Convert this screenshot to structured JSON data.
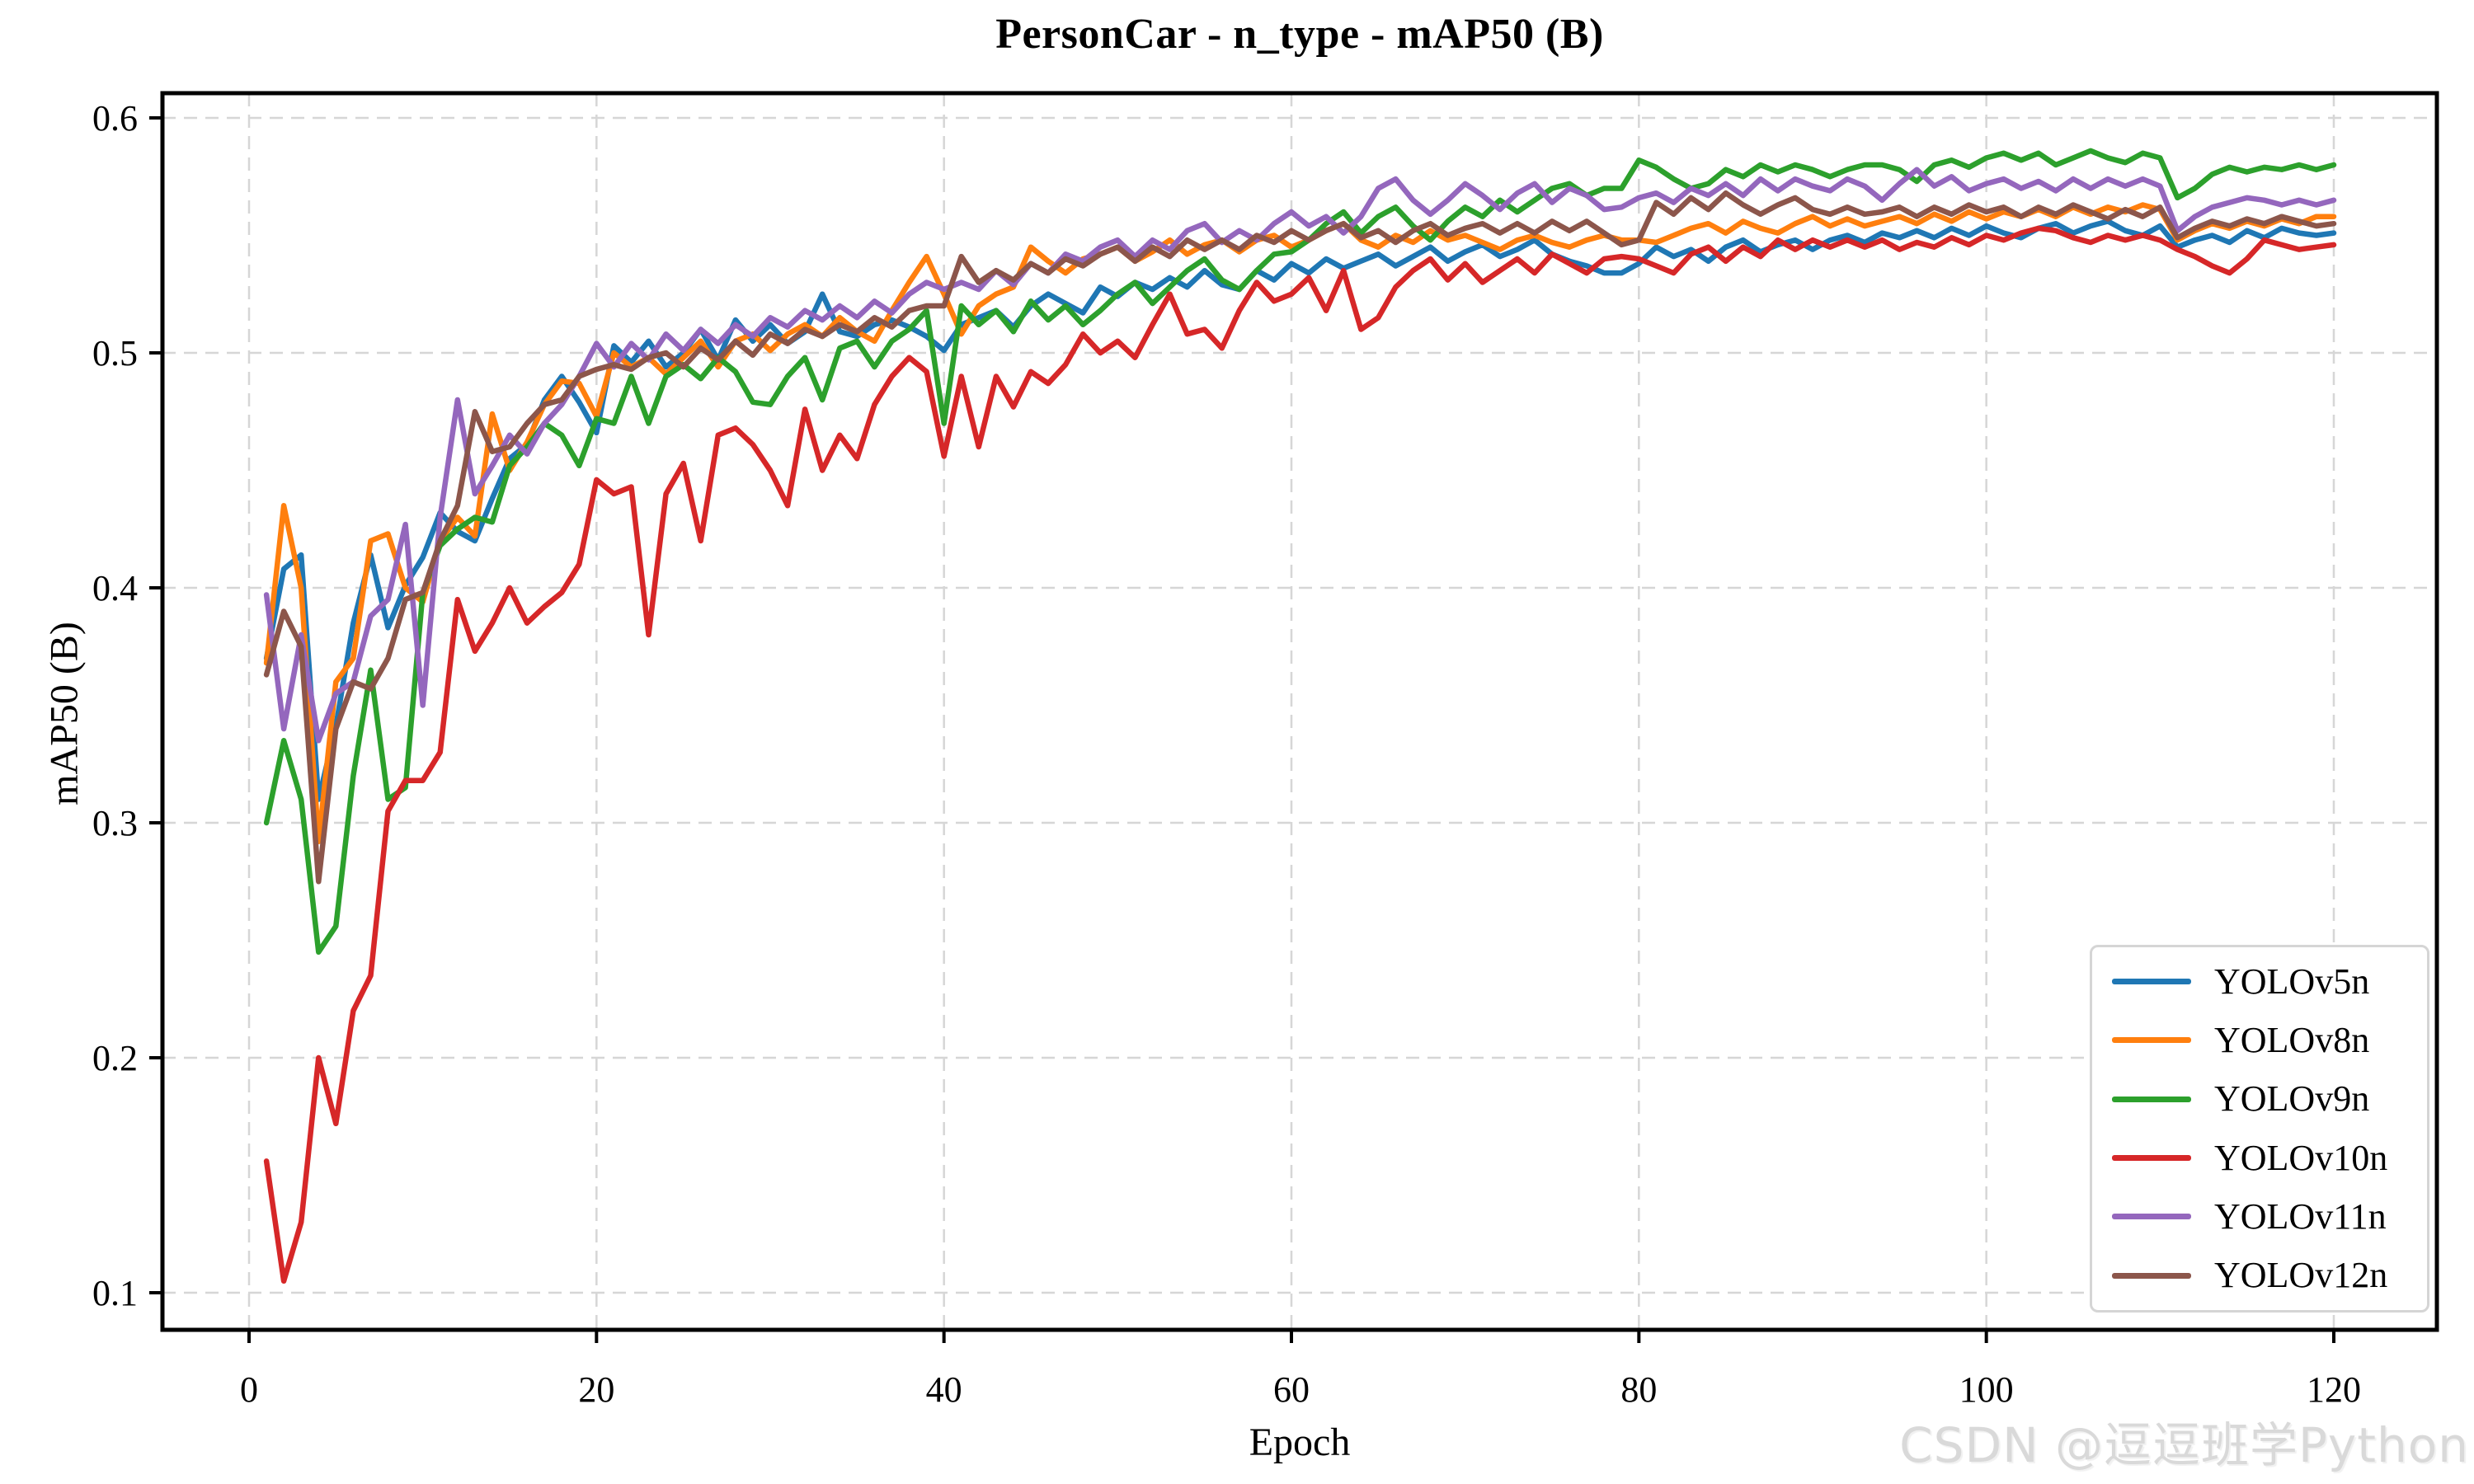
{
  "watermark": {
    "text": "CSDN @逗逗班学Python"
  },
  "chart_data": {
    "type": "line",
    "title": "PersonCar - n_type - mAP50 (B)",
    "xlabel": "Epoch",
    "ylabel": "mAP50 (B)",
    "xlim": [
      -5,
      126
    ],
    "ylim": [
      0.0875,
      0.6105
    ],
    "xticks": [
      0,
      20,
      40,
      60,
      80,
      100,
      120
    ],
    "yticks": [
      0.1,
      0.2,
      0.3,
      0.4,
      0.5,
      0.6
    ],
    "grid": true,
    "grid_style": "dashed",
    "legend_position": "lower right",
    "x_start": 1,
    "x_step": 1,
    "series": [
      {
        "name": "YOLOv5n",
        "color": "#1f77b4",
        "values": [
          0.37,
          0.408,
          0.414,
          0.31,
          0.341,
          0.385,
          0.414,
          0.383,
          0.401,
          0.413,
          0.432,
          0.424,
          0.42,
          0.438,
          0.455,
          0.461,
          0.48,
          0.49,
          0.479,
          0.466,
          0.503,
          0.496,
          0.505,
          0.494,
          0.5,
          0.51,
          0.497,
          0.514,
          0.505,
          0.512,
          0.504,
          0.509,
          0.525,
          0.509,
          0.507,
          0.512,
          0.514,
          0.511,
          0.507,
          0.501,
          0.512,
          0.515,
          0.518,
          0.511,
          0.52,
          0.525,
          0.521,
          0.517,
          0.528,
          0.524,
          0.53,
          0.527,
          0.532,
          0.528,
          0.535,
          0.529,
          0.527,
          0.535,
          0.531,
          0.538,
          0.534,
          0.54,
          0.536,
          0.539,
          0.542,
          0.537,
          0.541,
          0.545,
          0.539,
          0.543,
          0.546,
          0.541,
          0.544,
          0.548,
          0.542,
          0.539,
          0.537,
          0.534,
          0.534,
          0.538,
          0.545,
          0.541,
          0.544,
          0.539,
          0.545,
          0.548,
          0.543,
          0.546,
          0.548,
          0.544,
          0.548,
          0.55,
          0.547,
          0.551,
          0.549,
          0.552,
          0.549,
          0.553,
          0.55,
          0.554,
          0.551,
          0.549,
          0.553,
          0.555,
          0.551,
          0.554,
          0.556,
          0.552,
          0.55,
          0.554,
          0.545,
          0.548,
          0.55,
          0.547,
          0.552,
          0.549,
          0.553,
          0.551,
          0.55,
          0.551
        ]
      },
      {
        "name": "YOLOv8n",
        "color": "#ff7f0e",
        "values": [
          0.368,
          0.435,
          0.4,
          0.292,
          0.36,
          0.37,
          0.42,
          0.423,
          0.4,
          0.394,
          0.42,
          0.43,
          0.422,
          0.474,
          0.45,
          0.462,
          0.478,
          0.488,
          0.487,
          0.473,
          0.5,
          0.494,
          0.498,
          0.491,
          0.498,
          0.505,
          0.494,
          0.505,
          0.508,
          0.501,
          0.508,
          0.512,
          0.507,
          0.515,
          0.509,
          0.505,
          0.518,
          0.53,
          0.541,
          0.525,
          0.508,
          0.52,
          0.525,
          0.528,
          0.545,
          0.539,
          0.534,
          0.54,
          0.542,
          0.545,
          0.539,
          0.543,
          0.548,
          0.542,
          0.546,
          0.548,
          0.543,
          0.548,
          0.55,
          0.545,
          0.548,
          0.552,
          0.555,
          0.548,
          0.545,
          0.55,
          0.547,
          0.552,
          0.548,
          0.55,
          0.547,
          0.544,
          0.548,
          0.55,
          0.547,
          0.545,
          0.548,
          0.55,
          0.548,
          0.548,
          0.547,
          0.55,
          0.553,
          0.555,
          0.551,
          0.556,
          0.553,
          0.551,
          0.555,
          0.558,
          0.554,
          0.557,
          0.554,
          0.556,
          0.558,
          0.555,
          0.559,
          0.556,
          0.56,
          0.557,
          0.56,
          0.558,
          0.561,
          0.558,
          0.562,
          0.559,
          0.562,
          0.56,
          0.563,
          0.561,
          0.548,
          0.552,
          0.555,
          0.553,
          0.556,
          0.554,
          0.557,
          0.555,
          0.558,
          0.558
        ]
      },
      {
        "name": "YOLOv9n",
        "color": "#2ca02c",
        "values": [
          0.3,
          0.335,
          0.31,
          0.245,
          0.256,
          0.32,
          0.365,
          0.31,
          0.315,
          0.398,
          0.418,
          0.425,
          0.43,
          0.428,
          0.452,
          0.46,
          0.47,
          0.465,
          0.452,
          0.472,
          0.47,
          0.49,
          0.47,
          0.49,
          0.495,
          0.489,
          0.498,
          0.492,
          0.479,
          0.478,
          0.49,
          0.498,
          0.48,
          0.502,
          0.505,
          0.494,
          0.505,
          0.51,
          0.518,
          0.47,
          0.52,
          0.512,
          0.518,
          0.509,
          0.522,
          0.514,
          0.52,
          0.512,
          0.518,
          0.525,
          0.53,
          0.521,
          0.528,
          0.535,
          0.54,
          0.531,
          0.527,
          0.535,
          0.542,
          0.543,
          0.548,
          0.555,
          0.56,
          0.551,
          0.558,
          0.562,
          0.554,
          0.548,
          0.556,
          0.562,
          0.558,
          0.565,
          0.56,
          0.565,
          0.57,
          0.572,
          0.567,
          0.57,
          0.57,
          0.582,
          0.579,
          0.574,
          0.57,
          0.572,
          0.578,
          0.575,
          0.58,
          0.577,
          0.58,
          0.578,
          0.575,
          0.578,
          0.58,
          0.58,
          0.578,
          0.573,
          0.58,
          0.582,
          0.579,
          0.583,
          0.585,
          0.582,
          0.585,
          0.58,
          0.583,
          0.586,
          0.583,
          0.581,
          0.585,
          0.583,
          0.566,
          0.57,
          0.576,
          0.579,
          0.577,
          0.579,
          0.578,
          0.58,
          0.578,
          0.58
        ]
      },
      {
        "name": "YOLOv10n",
        "color": "#d62728",
        "values": [
          0.156,
          0.105,
          0.13,
          0.2,
          0.172,
          0.22,
          0.235,
          0.305,
          0.318,
          0.318,
          0.33,
          0.395,
          0.373,
          0.385,
          0.4,
          0.385,
          0.392,
          0.398,
          0.41,
          0.446,
          0.44,
          0.443,
          0.38,
          0.44,
          0.453,
          0.42,
          0.465,
          0.468,
          0.461,
          0.45,
          0.435,
          0.476,
          0.45,
          0.465,
          0.455,
          0.478,
          0.49,
          0.498,
          0.492,
          0.456,
          0.49,
          0.46,
          0.49,
          0.477,
          0.492,
          0.487,
          0.495,
          0.508,
          0.5,
          0.505,
          0.498,
          0.512,
          0.525,
          0.508,
          0.51,
          0.502,
          0.518,
          0.53,
          0.522,
          0.525,
          0.532,
          0.518,
          0.535,
          0.51,
          0.515,
          0.528,
          0.535,
          0.54,
          0.531,
          0.538,
          0.53,
          0.535,
          0.54,
          0.534,
          0.542,
          0.538,
          0.534,
          0.54,
          0.541,
          0.54,
          0.537,
          0.534,
          0.542,
          0.545,
          0.539,
          0.545,
          0.541,
          0.548,
          0.544,
          0.548,
          0.545,
          0.548,
          0.545,
          0.548,
          0.544,
          0.547,
          0.545,
          0.549,
          0.546,
          0.55,
          0.548,
          0.551,
          0.553,
          0.552,
          0.549,
          0.547,
          0.55,
          0.548,
          0.55,
          0.548,
          0.544,
          0.541,
          0.537,
          0.534,
          0.54,
          0.548,
          0.546,
          0.544,
          0.545,
          0.546
        ]
      },
      {
        "name": "YOLOv11n",
        "color": "#9467bd",
        "values": [
          0.397,
          0.34,
          0.38,
          0.335,
          0.355,
          0.36,
          0.388,
          0.395,
          0.427,
          0.35,
          0.43,
          0.48,
          0.44,
          0.452,
          0.465,
          0.457,
          0.47,
          0.478,
          0.49,
          0.504,
          0.494,
          0.504,
          0.497,
          0.508,
          0.501,
          0.51,
          0.504,
          0.512,
          0.507,
          0.515,
          0.511,
          0.518,
          0.514,
          0.52,
          0.515,
          0.522,
          0.517,
          0.525,
          0.53,
          0.527,
          0.53,
          0.527,
          0.535,
          0.529,
          0.538,
          0.534,
          0.542,
          0.539,
          0.545,
          0.548,
          0.541,
          0.548,
          0.544,
          0.552,
          0.555,
          0.547,
          0.552,
          0.548,
          0.555,
          0.56,
          0.554,
          0.558,
          0.551,
          0.558,
          0.57,
          0.574,
          0.565,
          0.559,
          0.565,
          0.572,
          0.567,
          0.561,
          0.568,
          0.572,
          0.564,
          0.57,
          0.567,
          0.561,
          0.562,
          0.566,
          0.568,
          0.564,
          0.57,
          0.567,
          0.572,
          0.567,
          0.574,
          0.569,
          0.574,
          0.571,
          0.569,
          0.574,
          0.571,
          0.565,
          0.572,
          0.578,
          0.571,
          0.575,
          0.569,
          0.572,
          0.574,
          0.57,
          0.573,
          0.569,
          0.574,
          0.57,
          0.574,
          0.571,
          0.574,
          0.571,
          0.552,
          0.558,
          0.562,
          0.564,
          0.566,
          0.565,
          0.563,
          0.565,
          0.563,
          0.565
        ]
      },
      {
        "name": "YOLOv12n",
        "color": "#8c564b",
        "values": [
          0.363,
          0.39,
          0.375,
          0.275,
          0.34,
          0.36,
          0.357,
          0.37,
          0.395,
          0.398,
          0.42,
          0.435,
          0.475,
          0.458,
          0.46,
          0.47,
          0.478,
          0.48,
          0.49,
          0.493,
          0.495,
          0.493,
          0.498,
          0.5,
          0.494,
          0.502,
          0.497,
          0.505,
          0.499,
          0.508,
          0.504,
          0.51,
          0.507,
          0.512,
          0.509,
          0.515,
          0.511,
          0.518,
          0.52,
          0.52,
          0.541,
          0.53,
          0.535,
          0.531,
          0.538,
          0.534,
          0.54,
          0.537,
          0.542,
          0.545,
          0.539,
          0.545,
          0.541,
          0.548,
          0.544,
          0.548,
          0.544,
          0.55,
          0.547,
          0.552,
          0.548,
          0.552,
          0.555,
          0.549,
          0.552,
          0.547,
          0.552,
          0.555,
          0.55,
          0.553,
          0.555,
          0.551,
          0.555,
          0.551,
          0.556,
          0.552,
          0.556,
          0.551,
          0.546,
          0.548,
          0.564,
          0.559,
          0.566,
          0.561,
          0.568,
          0.563,
          0.559,
          0.563,
          0.566,
          0.561,
          0.559,
          0.562,
          0.559,
          0.56,
          0.562,
          0.558,
          0.562,
          0.559,
          0.563,
          0.56,
          0.562,
          0.558,
          0.562,
          0.559,
          0.563,
          0.56,
          0.557,
          0.561,
          0.558,
          0.562,
          0.549,
          0.553,
          0.556,
          0.554,
          0.557,
          0.555,
          0.558,
          0.556,
          0.554,
          0.555
        ]
      }
    ],
    "style": {
      "grid_color": "#d6d6d6",
      "spine_color": "#000000",
      "text_color": "#000000",
      "line_width": 6.5
    }
  }
}
